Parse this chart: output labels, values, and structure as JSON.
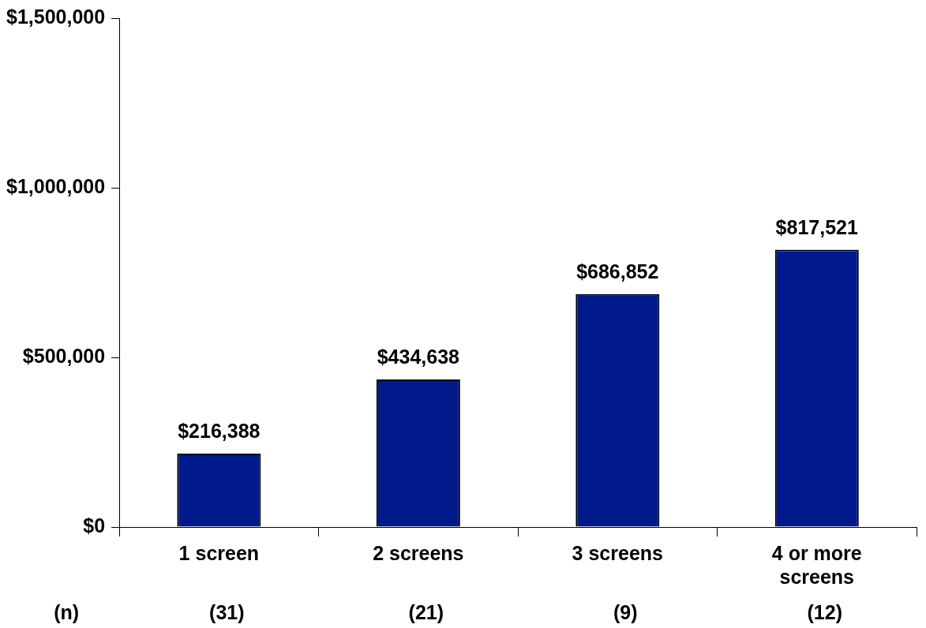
{
  "chart_data": {
    "type": "bar",
    "categories": [
      "1 screen",
      "2 screens",
      "3 screens",
      "4 or more screens"
    ],
    "values": [
      216388,
      434638,
      686852,
      817521
    ],
    "value_labels": [
      "$216,388",
      "$434,638",
      "$686,852",
      "$817,521"
    ],
    "color": "#001a8c",
    "ylim": [
      0,
      1500000
    ],
    "yticks": [
      {
        "value": 0,
        "label": "$0"
      },
      {
        "value": 500000,
        "label": "$500,000"
      },
      {
        "value": 1000000,
        "label": "$1,000,000"
      },
      {
        "value": 1500000,
        "label": "$1,500,000"
      }
    ],
    "annotations": [
      "(n)",
      "(31)",
      "(21)",
      "(9)",
      "(12)"
    ],
    "legend": false
  }
}
